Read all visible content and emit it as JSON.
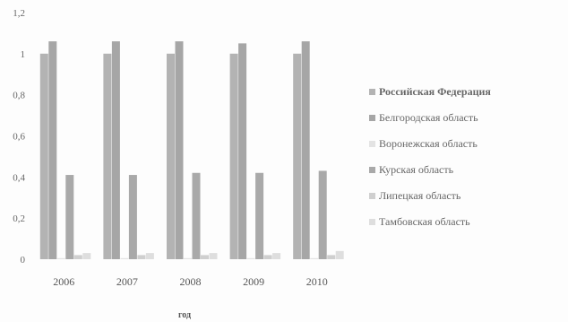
{
  "chart_data": {
    "type": "bar",
    "categories": [
      "2006",
      "2007",
      "2008",
      "2009",
      "2010"
    ],
    "series": [
      {
        "name": "Российская Федерация",
        "values": [
          1.0,
          1.0,
          1.0,
          1.0,
          1.0
        ],
        "color": "#b3b3b3"
      },
      {
        "name": "Белгородская область",
        "values": [
          1.06,
          1.06,
          1.06,
          1.05,
          1.06
        ],
        "color": "#a6a6a6"
      },
      {
        "name": "Воронежская область",
        "values": [
          0.0,
          0.0,
          0.0,
          0.0,
          0.0
        ],
        "color": "#e3e3e3"
      },
      {
        "name": "Курская область",
        "values": [
          0.41,
          0.41,
          0.42,
          0.42,
          0.43
        ],
        "color": "#a9a9a9"
      },
      {
        "name": "Липецкая область",
        "values": [
          0.02,
          0.02,
          0.02,
          0.02,
          0.02
        ],
        "color": "#cfcfcf"
      },
      {
        "name": "Тамбовская область",
        "values": [
          0.03,
          0.03,
          0.03,
          0.03,
          0.04
        ],
        "color": "#dedede"
      }
    ],
    "xlabel": "год",
    "ylabel": "",
    "ylim": [
      0,
      1.2
    ],
    "yticks": [
      "0",
      "0,2",
      "0,4",
      "0,6",
      "0,8",
      "1",
      "1,2"
    ],
    "legend_position": "right",
    "grid": false
  }
}
